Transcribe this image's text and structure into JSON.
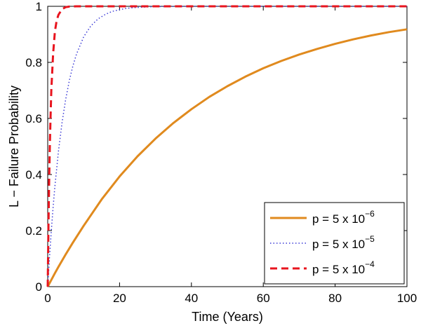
{
  "chart_data": {
    "type": "line",
    "title": "",
    "xlabel": "Time (Years)",
    "ylabel": "L − Failure Probability",
    "xlim": [
      0,
      100
    ],
    "ylim": [
      0,
      1
    ],
    "xticks": [
      0,
      20,
      40,
      60,
      80,
      100
    ],
    "yticks": [
      0,
      0.2,
      0.4,
      0.6,
      0.8,
      1
    ],
    "xtick_labels": [
      "0",
      "20",
      "40",
      "60",
      "80",
      "100"
    ],
    "ytick_labels": [
      "0",
      "0.2",
      "0.4",
      "0.6",
      "0.8",
      "1"
    ],
    "grid": false,
    "legend_position": "bottom-right",
    "series": [
      {
        "name": "p = 5 x 10⁻⁶",
        "label_base": "p = 5 x 10",
        "label_exp": "−6",
        "color": "#e08a1e",
        "style": "solid",
        "x": [
          0,
          1,
          2,
          3,
          5,
          7,
          10,
          15,
          20,
          25,
          30,
          35,
          40,
          45,
          50,
          55,
          60,
          65,
          70,
          75,
          80,
          85,
          90,
          95,
          100
        ],
        "y": [
          0,
          0.024,
          0.048,
          0.071,
          0.115,
          0.157,
          0.217,
          0.311,
          0.393,
          0.465,
          0.528,
          0.584,
          0.633,
          0.677,
          0.715,
          0.749,
          0.779,
          0.805,
          0.828,
          0.848,
          0.866,
          0.882,
          0.896,
          0.908,
          0.918
        ]
      },
      {
        "name": "p = 5 x 10⁻⁵",
        "label_base": "p = 5 x 10",
        "label_exp": "−5",
        "color": "#3a3ad6",
        "style": "dotted",
        "x": [
          0,
          0.5,
          1,
          1.5,
          2,
          3,
          4,
          5,
          6,
          7,
          8,
          10,
          12,
          14,
          16,
          18,
          20,
          22,
          25,
          30,
          40,
          50,
          60,
          70,
          80,
          90,
          100
        ],
        "y": [
          0,
          0.105,
          0.199,
          0.283,
          0.358,
          0.484,
          0.586,
          0.668,
          0.734,
          0.787,
          0.829,
          0.891,
          0.93,
          0.955,
          0.971,
          0.982,
          0.988,
          0.993,
          0.996,
          0.999,
          1,
          1,
          1,
          1,
          1,
          1,
          1
        ]
      },
      {
        "name": "p = 5 x 10⁻⁴",
        "label_base": "p = 5 x 10",
        "label_exp": "−4",
        "color": "#e8141e",
        "style": "dashed",
        "x": [
          0,
          0.2,
          0.4,
          0.6,
          0.8,
          1,
          1.5,
          2,
          2.5,
          3,
          4,
          5,
          6,
          8,
          10,
          20,
          40,
          60,
          80,
          100
        ],
        "y": [
          0,
          0.21,
          0.38,
          0.51,
          0.61,
          0.7,
          0.83,
          0.91,
          0.95,
          0.97,
          0.99,
          0.997,
          0.999,
          1,
          1,
          1,
          1,
          1,
          1,
          1
        ]
      }
    ]
  }
}
